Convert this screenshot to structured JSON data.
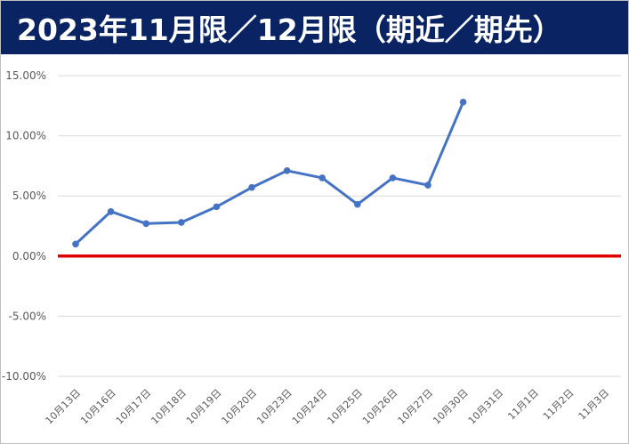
{
  "title": "2023年11月限／12月限（期近／期先）",
  "chart_data": {
    "type": "line",
    "categories": [
      "10月13日",
      "10月16日",
      "10月17日",
      "10月18日",
      "10月19日",
      "10月20日",
      "10月23日",
      "10月24日",
      "10月25日",
      "10月26日",
      "10月27日",
      "10月30日",
      "10月31日",
      "11月1日",
      "11月2日",
      "11月3日"
    ],
    "series": [
      {
        "values": [
          1.0,
          3.7,
          2.7,
          2.8,
          4.1,
          5.7,
          7.1,
          6.5,
          4.3,
          6.5,
          5.9,
          12.8,
          null,
          null,
          null,
          null
        ]
      }
    ],
    "yticks": [
      "15.00%",
      "10.00%",
      "5.00%",
      "0.00%",
      "-5.00%",
      "-10.00%"
    ],
    "ylim": [
      -10,
      15
    ],
    "ystep": 5,
    "grid": true,
    "zero_line": true,
    "colors": {
      "line": "#4472c4",
      "zero_line": "#e00000",
      "title_bg": "#0a2463",
      "grid": "#d9d9d9"
    }
  }
}
